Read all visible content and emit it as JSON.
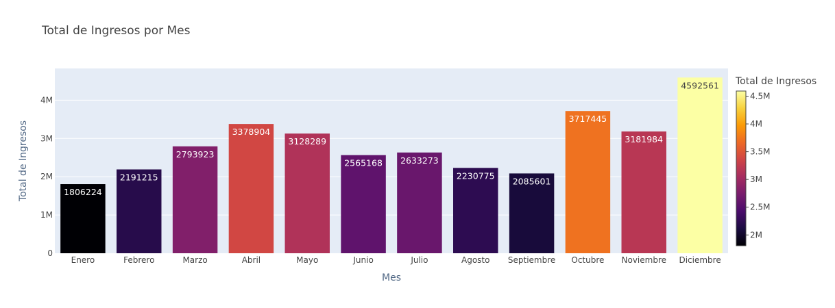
{
  "chart_data": {
    "type": "bar",
    "title": "Total de Ingresos por Mes",
    "xlabel": "Mes",
    "ylabel": "Total de Ingresos",
    "categories": [
      "Enero",
      "Febrero",
      "Marzo",
      "Abril",
      "Mayo",
      "Junio",
      "Julio",
      "Agosto",
      "Septiembre",
      "Octubre",
      "Noviembre",
      "Diciembre"
    ],
    "values": [
      1806224,
      2191215,
      2793923,
      3378904,
      3128289,
      2565168,
      2633273,
      2230775,
      2085601,
      3717445,
      3181984,
      4592561
    ],
    "data_labels": [
      "1806224",
      "2191215",
      "2793923",
      "3378904",
      "3128289",
      "2565168",
      "2633273",
      "2230775",
      "2085601",
      "3717445",
      "3181984",
      "4592561"
    ],
    "ylim": [
      0,
      4830000
    ],
    "yticks": [
      0,
      1000000,
      2000000,
      3000000,
      4000000
    ],
    "ytick_labels": [
      "0",
      "1M",
      "2M",
      "3M",
      "4M"
    ],
    "grid": true,
    "colorbar": {
      "title": "Total de Ingresos",
      "colorscale": "inferno",
      "range": [
        1806224,
        4592561
      ],
      "ticks": [
        2000000,
        2500000,
        3000000,
        3500000,
        4000000,
        4500000
      ],
      "tick_labels": [
        "2M",
        "2.5M",
        "3M",
        "3.5M",
        "4M",
        "4.5M"
      ],
      "placement": "right"
    },
    "colors": {
      "plot_background": "#e5ecf6",
      "gridline": "#ffffff"
    }
  }
}
